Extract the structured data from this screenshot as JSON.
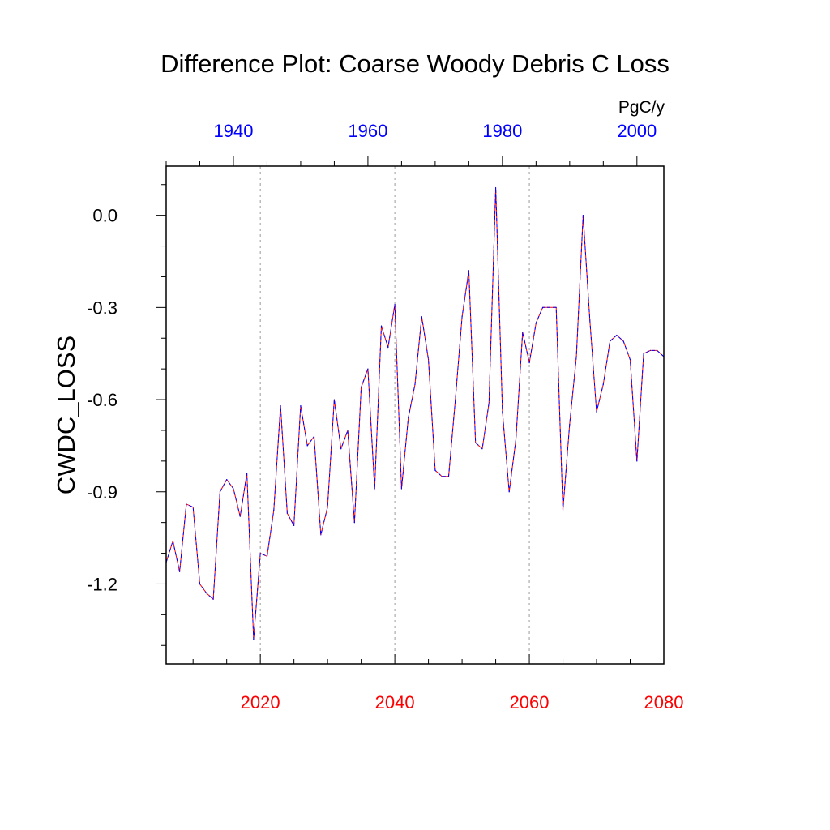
{
  "chart_data": {
    "type": "line",
    "title": "Difference Plot: Coarse Woody Debris C Loss",
    "ylabel": "CWDC_LOSS",
    "units": "PgC/y",
    "colors": {
      "primary_axis": "#ff0000",
      "secondary_axis": "#0000ff",
      "line_solid": "#ff0000",
      "line_dashed": "#0000ff",
      "gridline": "#9a9a9a"
    },
    "x_bottom": {
      "range": [
        2006,
        2080
      ],
      "ticks": [
        2020,
        2040,
        2060,
        2080
      ],
      "tick_labels": [
        "2020",
        "2040",
        "2060",
        "2080"
      ]
    },
    "x_top": {
      "range": [
        1930,
        2004
      ],
      "ticks": [
        1940,
        1960,
        1980,
        2000
      ],
      "tick_labels": [
        "1940",
        "1960",
        "1980",
        "2000"
      ]
    },
    "ylim": [
      -1.46,
      0.16
    ],
    "y_ticks": [
      0.0,
      -0.3,
      -0.6,
      -0.9,
      -1.2
    ],
    "y_tick_labels": [
      "0.0",
      "-0.3",
      "-0.6",
      "-0.9",
      "-1.2"
    ],
    "grid": "vertical dotted at bottom-axis major ticks",
    "series": [
      {
        "name": "difference",
        "x": [
          2006,
          2007,
          2008,
          2009,
          2010,
          2011,
          2012,
          2013,
          2014,
          2015,
          2016,
          2017,
          2018,
          2019,
          2020,
          2021,
          2022,
          2023,
          2024,
          2025,
          2026,
          2027,
          2028,
          2029,
          2030,
          2031,
          2032,
          2033,
          2034,
          2035,
          2036,
          2037,
          2038,
          2039,
          2040,
          2041,
          2042,
          2043,
          2044,
          2045,
          2046,
          2047,
          2048,
          2049,
          2050,
          2051,
          2052,
          2053,
          2054,
          2055,
          2056,
          2057,
          2058,
          2059,
          2060,
          2061,
          2062,
          2064,
          2065,
          2066,
          2067,
          2068,
          2069,
          2070,
          2071,
          2072,
          2073,
          2074,
          2075,
          2076,
          2077,
          2078,
          2079,
          2080
        ],
        "values": [
          -1.13,
          -1.06,
          -1.16,
          -0.94,
          -0.95,
          -1.2,
          -1.23,
          -1.25,
          -0.9,
          -0.86,
          -0.89,
          -0.98,
          -0.84,
          -1.38,
          -1.1,
          -1.11,
          -0.96,
          -0.62,
          -0.97,
          -1.01,
          -0.62,
          -0.75,
          -0.72,
          -1.04,
          -0.95,
          -0.6,
          -0.76,
          -0.7,
          -1.0,
          -0.56,
          -0.5,
          -0.89,
          -0.36,
          -0.43,
          -0.29,
          -0.89,
          -0.66,
          -0.55,
          -0.33,
          -0.47,
          -0.83,
          -0.85,
          -0.85,
          -0.6,
          -0.33,
          -0.18,
          -0.74,
          -0.76,
          -0.61,
          0.09,
          -0.64,
          -0.9,
          -0.73,
          -0.38,
          -0.48,
          -0.35,
          -0.3,
          -0.3,
          -0.96,
          -0.68,
          -0.46,
          0.0,
          -0.34,
          -0.64,
          -0.55,
          -0.41,
          -0.39,
          -0.41,
          -0.47,
          -0.8,
          -0.45,
          -0.44,
          -0.44,
          -0.46
        ]
      }
    ]
  }
}
